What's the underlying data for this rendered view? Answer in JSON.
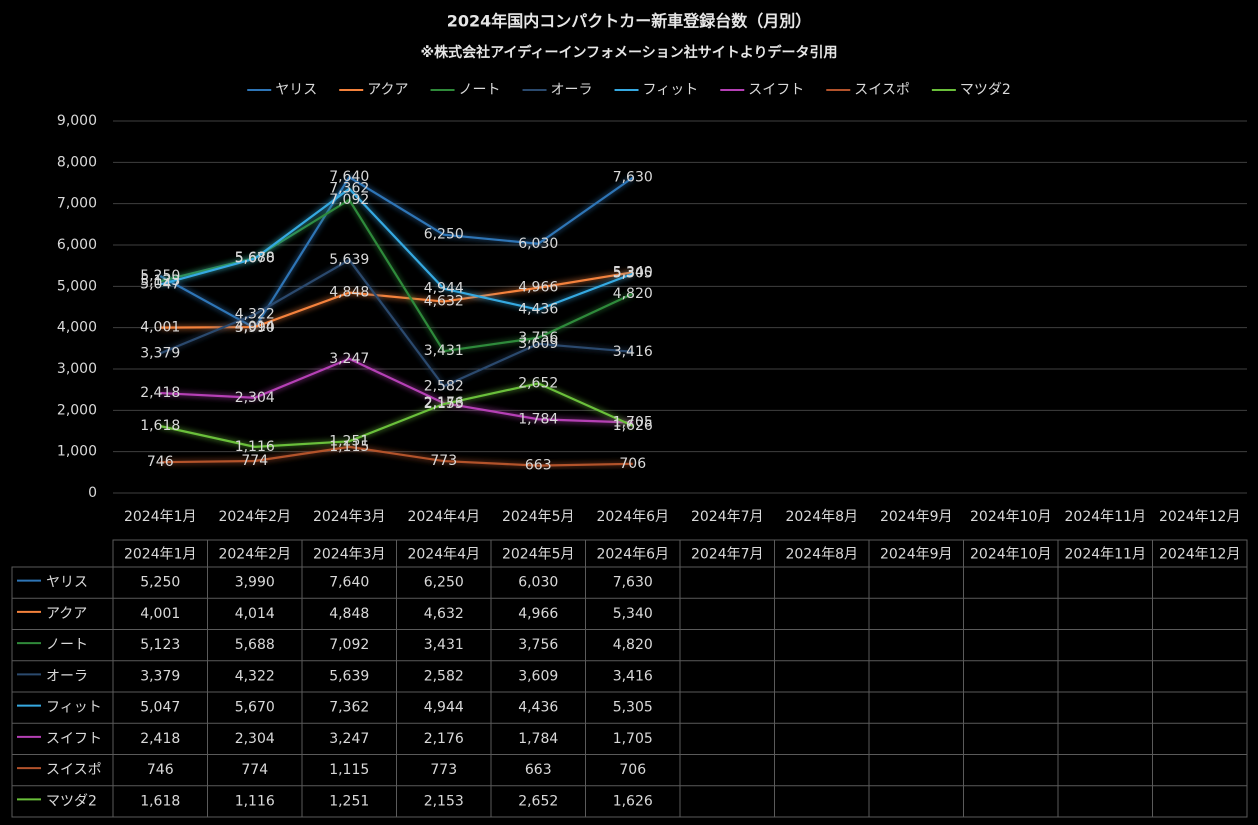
{
  "chart_data": {
    "type": "line",
    "title": "2024年国内コンパクトカー新車登録台数（月別）",
    "subtitle": "※株式会社アイディーインフォメーション社サイトよりデータ引用",
    "categories": [
      "2024年1月",
      "2024年2月",
      "2024年3月",
      "2024年4月",
      "2024年5月",
      "2024年6月",
      "2024年7月",
      "2024年8月",
      "2024年9月",
      "2024年10月",
      "2024年11月",
      "2024年12月"
    ],
    "ylim": [
      0,
      9000
    ],
    "yticks": [
      0,
      {
        "value": 1000,
        "label": "1,000"
      },
      {
        "value": 2000,
        "label": "2,000"
      },
      {
        "value": 3000,
        "label": "3,000"
      },
      {
        "value": 4000,
        "label": "4,000"
      },
      {
        "value": 5000,
        "label": "5,000"
      },
      {
        "value": 6000,
        "label": "6,000"
      },
      {
        "value": 7000,
        "label": "7,000"
      },
      {
        "value": 8000,
        "label": "8,000"
      },
      {
        "value": 9000,
        "label": "9,000"
      }
    ],
    "grid": true,
    "legend": "top",
    "data_table": true,
    "series": [
      {
        "name": "ヤリス",
        "color": "#2e75b6",
        "values": [
          5250,
          3990,
          7640,
          6250,
          6030,
          7630,
          null,
          null,
          null,
          null,
          null,
          null
        ],
        "value_labels": [
          "5,250",
          "3,990",
          "7,640",
          "6,250",
          "6,030",
          "7,630",
          null,
          null,
          null,
          null,
          null,
          null
        ]
      },
      {
        "name": "アクア",
        "color": "#f4823c",
        "values": [
          4001,
          4014,
          4848,
          4632,
          4966,
          5340,
          null,
          null,
          null,
          null,
          null,
          null
        ],
        "value_labels": [
          "4,001",
          "4,014",
          "4,848",
          "4,632",
          "4,966",
          "5,340",
          null,
          null,
          null,
          null,
          null,
          null
        ]
      },
      {
        "name": "ノート",
        "color": "#2f8a3a",
        "values": [
          5123,
          5688,
          7092,
          3431,
          3756,
          4820,
          null,
          null,
          null,
          null,
          null,
          null
        ],
        "value_labels": [
          "5,123",
          "5,688",
          "7,092",
          "3,431",
          "3,756",
          "4,820",
          null,
          null,
          null,
          null,
          null,
          null
        ]
      },
      {
        "name": "オーラ",
        "color": "#2b4a6e",
        "values": [
          3379,
          4322,
          5639,
          2582,
          3609,
          3416,
          null,
          null,
          null,
          null,
          null,
          null
        ],
        "value_labels": [
          "3,379",
          "4,322",
          "5,639",
          "2,582",
          "3,609",
          "3,416",
          null,
          null,
          null,
          null,
          null,
          null
        ]
      },
      {
        "name": "フィット",
        "color": "#36a9e1",
        "values": [
          5047,
          5670,
          7362,
          4944,
          4436,
          5305,
          null,
          null,
          null,
          null,
          null,
          null
        ],
        "value_labels": [
          "5,047",
          "5,670",
          "7,362",
          "4,944",
          "4,436",
          "5,305",
          null,
          null,
          null,
          null,
          null,
          null
        ]
      },
      {
        "name": "スイフト",
        "color": "#b540b5",
        "values": [
          2418,
          2304,
          3247,
          2176,
          1784,
          1705,
          null,
          null,
          null,
          null,
          null,
          null
        ],
        "value_labels": [
          "2,418",
          "2,304",
          "3,247",
          "2,176",
          "1,784",
          "1,705",
          null,
          null,
          null,
          null,
          null,
          null
        ]
      },
      {
        "name": "スイスポ",
        "color": "#b3532c",
        "values": [
          746,
          774,
          1115,
          773,
          663,
          706,
          null,
          null,
          null,
          null,
          null,
          null
        ],
        "value_labels": [
          "746",
          "774",
          "1,115",
          "773",
          "663",
          "706",
          null,
          null,
          null,
          null,
          null,
          null
        ]
      },
      {
        "name": "マツダ2",
        "color": "#6abf3a",
        "values": [
          1618,
          1116,
          1251,
          2153,
          2652,
          1626,
          null,
          null,
          null,
          null,
          null,
          null
        ],
        "value_labels": [
          "1,618",
          "1,116",
          "1,251",
          "2,153",
          "2,652",
          "1,626",
          null,
          null,
          null,
          null,
          null,
          null
        ]
      }
    ]
  }
}
